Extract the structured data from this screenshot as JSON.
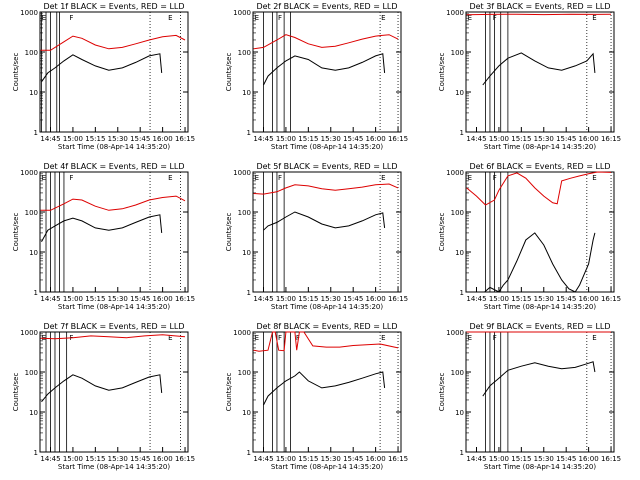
{
  "figure": {
    "xlabel": "Start Time (08-Apr-14 14:35:20)",
    "ylabel": "Counts/sec",
    "colors": {
      "events": "#000000",
      "lld": "#dd0000",
      "axes": "#000000"
    }
  },
  "chart_data": [
    {
      "type": "line",
      "title": "Det 1f BLACK = Events, RED = LLD",
      "xlabel": "Start Time (08-Apr-14 14:35:20)",
      "ylabel": "Counts/sec",
      "y_scale": "log",
      "ylim": [
        1,
        1000
      ],
      "xlim": [
        14.633,
        16.283
      ],
      "x_ticks": [
        "14:45",
        "15:00",
        "15:15",
        "15:30",
        "15:45",
        "16:00",
        "16:15"
      ],
      "y_ticks": [
        "1",
        "10",
        "100",
        "1000"
      ],
      "markers": [
        {
          "label": "F",
          "x": 14.95
        },
        {
          "label": "E",
          "x": 16.05
        },
        {
          "label": "E",
          "x": 14.64
        }
      ],
      "solid_lines": [
        14.65,
        14.7,
        14.75,
        14.82,
        14.85
      ],
      "dotted_lines": [
        15.86,
        16.2
      ],
      "series": [
        {
          "name": "Events",
          "color": "#000000",
          "x": [
            14.65,
            14.72,
            14.8,
            14.9,
            15.0,
            15.1,
            15.25,
            15.4,
            15.55,
            15.7,
            15.85,
            15.97,
            15.99
          ],
          "y": [
            18,
            30,
            40,
            60,
            85,
            65,
            45,
            35,
            40,
            55,
            80,
            90,
            30
          ]
        },
        {
          "name": "LLD",
          "color": "#dd0000",
          "x": [
            14.64,
            14.75,
            14.9,
            15.0,
            15.1,
            15.25,
            15.4,
            15.55,
            15.7,
            15.85,
            16.0,
            16.15,
            16.25
          ],
          "y": [
            110,
            110,
            180,
            250,
            220,
            150,
            120,
            130,
            160,
            200,
            240,
            260,
            200
          ]
        }
      ]
    },
    {
      "type": "line",
      "title": "Det 2f BLACK = Events, RED = LLD",
      "xlabel": "Start Time (08-Apr-14 14:35:20)",
      "ylabel": "Counts/sec",
      "y_scale": "log",
      "ylim": [
        1,
        1000
      ],
      "xlim": [
        14.633,
        16.283
      ],
      "x_ticks": [
        "14:45",
        "15:00",
        "15:15",
        "15:30",
        "15:45",
        "16:00",
        "16:15"
      ],
      "y_ticks": [
        "1",
        "10",
        "100",
        "1000"
      ],
      "markers": [
        {
          "label": "F",
          "x": 14.9
        },
        {
          "label": "E",
          "x": 16.05
        },
        {
          "label": "E",
          "x": 14.64
        }
      ],
      "solid_lines": [
        14.75,
        14.85,
        14.9,
        14.98,
        15.05
      ],
      "dotted_lines": [
        16.05,
        16.25
      ],
      "series": [
        {
          "name": "Events",
          "color": "#000000",
          "x": [
            14.75,
            14.8,
            14.9,
            15.0,
            15.1,
            15.25,
            15.4,
            15.55,
            15.7,
            15.85,
            16.0,
            16.08,
            16.1
          ],
          "y": [
            15,
            25,
            40,
            60,
            80,
            65,
            40,
            35,
            40,
            55,
            80,
            90,
            30
          ]
        },
        {
          "name": "LLD",
          "color": "#dd0000",
          "x": [
            14.64,
            14.75,
            14.9,
            15.0,
            15.1,
            15.25,
            15.4,
            15.55,
            15.7,
            15.85,
            16.0,
            16.15,
            16.25
          ],
          "y": [
            120,
            130,
            200,
            270,
            230,
            160,
            130,
            140,
            170,
            210,
            250,
            270,
            210
          ]
        }
      ]
    },
    {
      "type": "line",
      "title": "Det 3f BLACK = Events, RED = LLD",
      "xlabel": "Start Time (08-Apr-14 14:35:20)",
      "ylabel": "Counts/sec",
      "y_scale": "log",
      "ylim": [
        1,
        1000
      ],
      "xlim": [
        14.633,
        16.283
      ],
      "x_ticks": [
        "14:45",
        "15:00",
        "15:15",
        "15:30",
        "15:45",
        "16:00",
        "16:15"
      ],
      "y_ticks": [
        "1",
        "10",
        "100",
        "1000"
      ],
      "markers": [
        {
          "label": "F",
          "x": 14.92
        },
        {
          "label": "E",
          "x": 16.03
        },
        {
          "label": "E",
          "x": 14.64
        }
      ],
      "solid_lines": [
        14.85,
        14.9,
        14.95,
        15.02,
        15.1
      ],
      "dotted_lines": [
        15.98,
        16.25
      ],
      "series": [
        {
          "name": "Events",
          "color": "#000000",
          "x": [
            14.82,
            14.9,
            15.0,
            15.1,
            15.25,
            15.4,
            15.55,
            15.7,
            15.85,
            15.98,
            16.05,
            16.07
          ],
          "y": [
            15,
            25,
            45,
            70,
            95,
            60,
            40,
            35,
            45,
            60,
            90,
            30
          ]
        },
        {
          "name": "LLD",
          "color": "#dd0000",
          "x": [
            14.64,
            14.9,
            15.2,
            15.5,
            15.8,
            16.1,
            16.25
          ],
          "y": [
            850,
            870,
            880,
            860,
            880,
            870,
            880
          ]
        }
      ]
    },
    {
      "type": "line",
      "title": "Det 4f BLACK = Events, RED = LLD",
      "xlabel": "Start Time (08-Apr-14 14:35:20)",
      "ylabel": "Counts/sec",
      "y_scale": "log",
      "ylim": [
        1,
        1000
      ],
      "xlim": [
        14.633,
        16.283
      ],
      "x_ticks": [
        "14:45",
        "15:00",
        "15:15",
        "15:30",
        "15:45",
        "16:00",
        "16:15"
      ],
      "y_ticks": [
        "1",
        "10",
        "100",
        "1000"
      ],
      "markers": [
        {
          "label": "F",
          "x": 14.95
        },
        {
          "label": "E",
          "x": 16.05
        },
        {
          "label": "E",
          "x": 14.64
        }
      ],
      "solid_lines": [
        14.7,
        14.75,
        14.8,
        14.85,
        14.9
      ],
      "dotted_lines": [
        15.86,
        16.2
      ],
      "series": [
        {
          "name": "Events",
          "color": "#000000",
          "x": [
            14.65,
            14.72,
            14.8,
            14.9,
            15.0,
            15.1,
            15.25,
            15.4,
            15.55,
            15.7,
            15.85,
            15.97,
            15.99
          ],
          "y": [
            18,
            35,
            45,
            60,
            70,
            60,
            40,
            35,
            40,
            55,
            75,
            85,
            30
          ]
        },
        {
          "name": "LLD",
          "color": "#dd0000",
          "x": [
            14.64,
            14.75,
            14.9,
            15.0,
            15.1,
            15.25,
            15.4,
            15.55,
            15.7,
            15.85,
            16.0,
            16.15,
            16.25
          ],
          "y": [
            110,
            110,
            160,
            210,
            200,
            140,
            110,
            120,
            150,
            200,
            230,
            250,
            190
          ]
        }
      ]
    },
    {
      "type": "line",
      "title": "Det 5f BLACK = Events, RED = LLD",
      "xlabel": "Start Time (08-Apr-14 14:35:20)",
      "ylabel": "Counts/sec",
      "y_scale": "log",
      "ylim": [
        1,
        1000
      ],
      "xlim": [
        14.633,
        16.283
      ],
      "x_ticks": [
        "14:45",
        "15:00",
        "15:15",
        "15:30",
        "15:45",
        "16:00",
        "16:15"
      ],
      "y_ticks": [
        "1",
        "10",
        "100",
        "1000"
      ],
      "markers": [
        {
          "label": "F",
          "x": 14.9
        },
        {
          "label": "E",
          "x": 16.05
        },
        {
          "label": "E",
          "x": 14.64
        }
      ],
      "solid_lines": [
        14.75,
        14.85,
        14.9,
        14.98
      ],
      "dotted_lines": [
        16.05,
        16.25
      ],
      "series": [
        {
          "name": "Events",
          "color": "#000000",
          "x": [
            14.75,
            14.8,
            14.9,
            15.0,
            15.1,
            15.25,
            15.4,
            15.55,
            15.7,
            15.85,
            16.0,
            16.08,
            16.1
          ],
          "y": [
            35,
            45,
            55,
            75,
            100,
            75,
            50,
            40,
            45,
            60,
            85,
            95,
            40
          ]
        },
        {
          "name": "LLD",
          "color": "#dd0000",
          "x": [
            14.64,
            14.75,
            14.9,
            15.0,
            15.1,
            15.25,
            15.4,
            15.55,
            15.7,
            15.85,
            16.0,
            16.15,
            16.25
          ],
          "y": [
            290,
            280,
            320,
            400,
            480,
            450,
            380,
            350,
            380,
            420,
            480,
            500,
            400
          ]
        }
      ]
    },
    {
      "type": "line",
      "title": "Det 6f BLACK = Events, RED = LLD",
      "xlabel": "Start Time (08-Apr-14 14:35:20)",
      "ylabel": "Counts/sec",
      "y_scale": "log",
      "ylim": [
        1,
        1000
      ],
      "xlim": [
        14.633,
        16.283
      ],
      "x_ticks": [
        "14:45",
        "15:00",
        "15:15",
        "15:30",
        "15:45",
        "16:00",
        "16:15"
      ],
      "y_ticks": [
        "1",
        "10",
        "100",
        "1000"
      ],
      "markers": [
        {
          "label": "F",
          "x": 14.92
        },
        {
          "label": "E",
          "x": 16.03
        },
        {
          "label": "E",
          "x": 14.64
        }
      ],
      "solid_lines": [
        14.85,
        14.9,
        14.95,
        15.02,
        15.1
      ],
      "dotted_lines": [
        15.98,
        16.25
      ],
      "series": [
        {
          "name": "Events",
          "color": "#000000",
          "x": [
            14.84,
            14.9,
            15.0,
            15.05,
            15.1,
            15.2,
            15.3,
            15.4,
            15.5,
            15.6,
            15.7,
            15.78,
            15.85,
            15.9,
            16.0,
            16.05,
            16.07
          ],
          "y": [
            1,
            1.3,
            1,
            1.5,
            2,
            6,
            20,
            30,
            15,
            5,
            2,
            1.2,
            1,
            1.5,
            5,
            20,
            30
          ]
        },
        {
          "name": "LLD",
          "color": "#dd0000",
          "x": [
            14.64,
            14.75,
            14.85,
            14.95,
            15.0,
            15.1,
            15.2,
            15.3,
            15.4,
            15.5,
            15.6,
            15.65,
            15.7,
            15.8,
            15.9,
            16.0,
            16.1,
            16.25
          ],
          "y": [
            400,
            250,
            150,
            200,
            350,
            800,
            950,
            700,
            400,
            250,
            170,
            160,
            600,
            700,
            800,
            900,
            1000,
            980
          ]
        }
      ]
    },
    {
      "type": "line",
      "title": "Det 7f BLACK = Events, RED = LLD",
      "xlabel": "Start Time (08-Apr-14 14:35:20)",
      "ylabel": "Counts/sec",
      "y_scale": "log",
      "ylim": [
        1,
        1000
      ],
      "xlim": [
        14.633,
        16.283
      ],
      "x_ticks": [
        "14:45",
        "15:00",
        "15:15",
        "15:30",
        "15:45",
        "16:00",
        "16:15"
      ],
      "y_ticks": [
        "1",
        "10",
        "100",
        "1000"
      ],
      "markers": [
        {
          "label": "F",
          "x": 14.95
        },
        {
          "label": "E",
          "x": 16.05
        },
        {
          "label": "E",
          "x": 14.64
        }
      ],
      "solid_lines": [
        14.7,
        14.75,
        14.8,
        14.85,
        14.93
      ],
      "dotted_lines": [
        15.86,
        16.2
      ],
      "series": [
        {
          "name": "Events",
          "color": "#000000",
          "x": [
            14.65,
            14.72,
            14.8,
            14.9,
            15.0,
            15.1,
            15.25,
            15.4,
            15.55,
            15.7,
            15.85,
            15.97,
            15.99
          ],
          "y": [
            18,
            28,
            40,
            60,
            85,
            70,
            45,
            35,
            40,
            55,
            75,
            85,
            30
          ]
        },
        {
          "name": "LLD",
          "color": "#dd0000",
          "x": [
            14.64,
            14.8,
            15.0,
            15.2,
            15.4,
            15.6,
            15.8,
            16.0,
            16.25
          ],
          "y": [
            700,
            680,
            720,
            800,
            760,
            720,
            800,
            850,
            760
          ]
        }
      ]
    },
    {
      "type": "line",
      "title": "Det 8f BLACK = Events, RED = LLD",
      "xlabel": "Start Time (08-Apr-14 14:35:20)",
      "ylabel": "Counts/sec",
      "y_scale": "log",
      "ylim": [
        1,
        1000
      ],
      "xlim": [
        14.633,
        16.283
      ],
      "x_ticks": [
        "14:45",
        "15:00",
        "15:15",
        "15:30",
        "15:45",
        "16:00",
        "16:15"
      ],
      "y_ticks": [
        "1",
        "10",
        "100",
        "1000"
      ],
      "markers": [
        {
          "label": "F",
          "x": 14.9
        },
        {
          "label": "F",
          "x": 15.1
        },
        {
          "label": "E",
          "x": 16.05
        },
        {
          "label": "E",
          "x": 14.64
        }
      ],
      "solid_lines": [
        14.75,
        14.85,
        14.9,
        14.98,
        15.05
      ],
      "dotted_lines": [
        16.05,
        16.25
      ],
      "series": [
        {
          "name": "Events",
          "color": "#000000",
          "x": [
            14.75,
            14.8,
            14.9,
            15.0,
            15.1,
            15.15,
            15.25,
            15.4,
            15.55,
            15.7,
            15.85,
            16.0,
            16.08,
            16.1
          ],
          "y": [
            15,
            25,
            40,
            60,
            80,
            100,
            60,
            40,
            45,
            55,
            70,
            90,
            100,
            40
          ]
        },
        {
          "name": "LLD",
          "color": "#dd0000",
          "x": [
            14.64,
            14.7,
            14.8,
            14.85,
            14.88,
            14.92,
            14.98,
            15.0,
            15.1,
            15.12,
            15.15,
            15.2,
            15.3,
            15.45,
            15.6,
            15.75,
            15.9,
            16.05,
            16.25
          ],
          "y": [
            350,
            330,
            350,
            1000,
            1000,
            350,
            340,
            1000,
            1000,
            350,
            1000,
            1000,
            450,
            420,
            420,
            460,
            480,
            500,
            400
          ]
        }
      ]
    },
    {
      "type": "line",
      "title": "Det 9f BLACK = Events, RED = LLD",
      "xlabel": "Start Time (08-Apr-14 14:35:20)",
      "ylabel": "Counts/sec",
      "y_scale": "log",
      "ylim": [
        1,
        1000
      ],
      "xlim": [
        14.633,
        16.283
      ],
      "x_ticks": [
        "14:45",
        "15:00",
        "15:15",
        "15:30",
        "15:45",
        "16:00",
        "16:15"
      ],
      "y_ticks": [
        "1",
        "10",
        "100",
        "1000"
      ],
      "markers": [
        {
          "label": "F",
          "x": 14.92
        },
        {
          "label": "E",
          "x": 16.03
        },
        {
          "label": "E",
          "x": 14.64
        }
      ],
      "solid_lines": [
        14.85,
        14.9,
        14.95,
        15.02,
        15.1
      ],
      "dotted_lines": [
        15.98,
        16.25
      ],
      "series": [
        {
          "name": "Events",
          "color": "#000000",
          "x": [
            14.82,
            14.9,
            15.0,
            15.1,
            15.25,
            15.4,
            15.55,
            15.7,
            15.85,
            15.98,
            16.05,
            16.07
          ],
          "y": [
            25,
            45,
            70,
            110,
            140,
            170,
            140,
            120,
            130,
            160,
            180,
            100
          ]
        },
        {
          "name": "LLD",
          "color": "#dd0000",
          "x": [
            14.64,
            14.9,
            15.2,
            15.5,
            15.8,
            16.1,
            16.25
          ],
          "y": [
            1000,
            1000,
            1000,
            1000,
            1000,
            1000,
            1000
          ]
        }
      ]
    }
  ]
}
